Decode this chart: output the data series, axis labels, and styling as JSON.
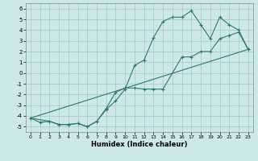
{
  "xlabel": "Humidex (Indice chaleur)",
  "bg_color": "#cce8e8",
  "grid_color": "#aacccc",
  "line_color": "#2d7a6e",
  "xlim": [
    -0.5,
    23.5
  ],
  "ylim": [
    -5.5,
    6.5
  ],
  "xticks": [
    0,
    1,
    2,
    3,
    4,
    5,
    6,
    7,
    8,
    9,
    10,
    11,
    12,
    13,
    14,
    15,
    16,
    17,
    18,
    19,
    20,
    21,
    22,
    23
  ],
  "yticks": [
    -5,
    -4,
    -3,
    -2,
    -1,
    0,
    1,
    2,
    3,
    4,
    5,
    6
  ],
  "line1_x": [
    0,
    1,
    2,
    3,
    4,
    5,
    6,
    7,
    8,
    9,
    10,
    11,
    12,
    13,
    14,
    15,
    16,
    17,
    18,
    19,
    20,
    21,
    22,
    23
  ],
  "line1_y": [
    -4.2,
    -4.6,
    -4.5,
    -4.8,
    -4.8,
    -4.7,
    -5.0,
    -4.5,
    -3.4,
    -2.6,
    -1.5,
    0.7,
    1.2,
    3.3,
    4.8,
    5.2,
    5.2,
    5.8,
    4.5,
    3.2,
    5.2,
    4.5,
    4.0,
    2.2
  ],
  "line2_x": [
    0,
    2,
    3,
    4,
    5,
    6,
    7,
    8,
    9,
    10,
    11,
    12,
    13,
    14,
    16,
    17,
    18,
    19,
    20,
    21,
    22,
    23
  ],
  "line2_y": [
    -4.2,
    -4.5,
    -4.8,
    -4.8,
    -4.7,
    -5.0,
    -4.5,
    -3.3,
    -1.8,
    -1.4,
    -1.4,
    -1.5,
    -1.5,
    -1.5,
    1.5,
    1.5,
    2.0,
    2.0,
    3.2,
    3.5,
    3.8,
    2.2
  ],
  "line3_x": [
    0,
    23
  ],
  "line3_y": [
    -4.2,
    2.2
  ]
}
